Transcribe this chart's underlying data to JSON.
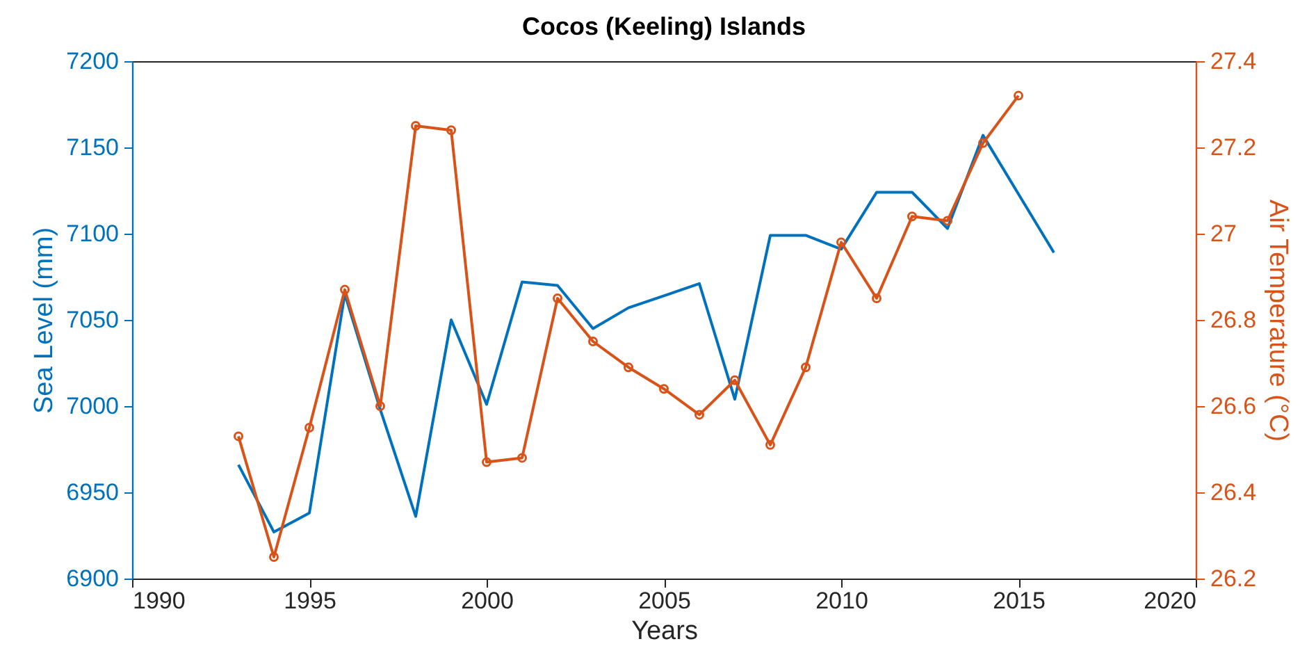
{
  "chart_data": {
    "type": "line",
    "title": "Cocos (Keeling) Islands",
    "xlabel": "Years",
    "ylabel": "Sea Level (mm)",
    "y2label": "Air Temperature (°C)",
    "x": [
      1993,
      1994,
      1995,
      1996,
      1997,
      1998,
      1999,
      2000,
      2001,
      2002,
      2003,
      2004,
      2005,
      2006,
      2007,
      2008,
      2009,
      2010,
      2011,
      2012,
      2013,
      2014,
      2015,
      2016
    ],
    "series": [
      {
        "color": "#0072bd",
        "marker": "none",
        "values": [
          6966,
          6927,
          6938,
          7065,
          6998,
          6936,
          7050,
          7001,
          7072,
          7070,
          7045,
          7057,
          7064,
          7071,
          7004,
          7099,
          7099,
          7091,
          7124,
          7124,
          7103,
          7157,
          7123,
          7089
        ]
      },
      {
        "color": "#d95319",
        "axis": "y2",
        "marker": "circle",
        "values": [
          26.53,
          26.25,
          26.55,
          26.87,
          26.6,
          27.25,
          27.24,
          26.47,
          26.48,
          26.85,
          26.75,
          26.69,
          26.64,
          26.58,
          26.66,
          26.51,
          26.69,
          26.98,
          26.85,
          27.04,
          27.03,
          27.21,
          27.32,
          null
        ]
      }
    ],
    "xlim": [
      1990,
      2020
    ],
    "xticks": [
      1990,
      1995,
      2000,
      2005,
      2010,
      2015,
      2020
    ],
    "ylim": [
      6900,
      7200
    ],
    "yticks": [
      6900,
      6950,
      7000,
      7050,
      7100,
      7150,
      7200
    ],
    "y2lim": [
      26.2,
      27.4
    ],
    "y2ticks": [
      26.2,
      26.4,
      26.6,
      26.8,
      27,
      27.2,
      27.4
    ],
    "grid": false
  }
}
